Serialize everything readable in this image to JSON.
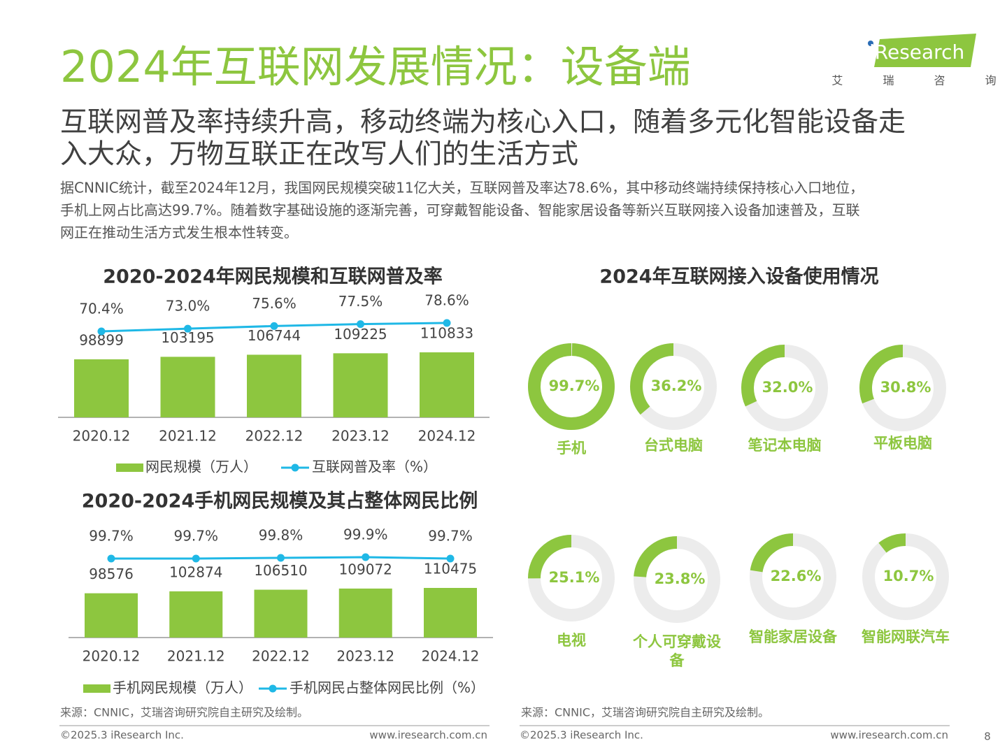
{
  "header": {
    "title": "2024年互联网发展情况：设备端",
    "subtitle_lines": [
      "互联网普及率持续升高，移动终端为核心入口，随着多元化智能设备走",
      "入大众，万物互联正在改写人们的生活方式"
    ],
    "paragraph_lines": [
      "据CNNIC统计，截至2024年12月，我国网民规模突破11亿大关，互联网普及率达78.6%，其中移动终端持续保持核心入口地位，",
      "手机上网占比高达99.7%。随着数字基础设施的逐渐完善，可穿戴智能设备、智能家居设备等新兴互联网接入设备加速普及，互联",
      "网正在推动生活方式发生根本性转变。"
    ],
    "logo": "iResearch",
    "logo_sub": "艾 瑞 咨 询"
  },
  "chart_data": [
    {
      "type": "bar_line",
      "title": "2020-2024年网民规模和互联网普及率",
      "categories": [
        "2020.12",
        "2021.12",
        "2022.12",
        "2023.12",
        "2024.12"
      ],
      "series": [
        {
          "name": "网民规模（万人）",
          "type": "bar",
          "color": "#8dc63f",
          "values": [
            98899,
            103195,
            106744,
            109225,
            110833
          ]
        },
        {
          "name": "互联网普及率（%）",
          "type": "line",
          "color": "#1fb8e6",
          "values": [
            70.4,
            73.0,
            75.6,
            77.5,
            78.6
          ],
          "value_labels": [
            "70.4%",
            "73.0%",
            "75.6%",
            "77.5%",
            "78.6%"
          ]
        }
      ]
    },
    {
      "type": "bar_line",
      "title": "2020-2024手机网民规模及其占整体网民比例",
      "categories": [
        "2020.12",
        "2021.12",
        "2022.12",
        "2023.12",
        "2024.12"
      ],
      "series": [
        {
          "name": "手机网民规模（万人）",
          "type": "bar",
          "color": "#8dc63f",
          "values": [
            98576,
            102874,
            106510,
            109072,
            110475
          ]
        },
        {
          "name": "手机网民占整体网民比例（%）",
          "type": "line",
          "color": "#1fb8e6",
          "values": [
            99.7,
            99.7,
            99.8,
            99.9,
            99.7
          ],
          "value_labels": [
            "99.7%",
            "99.7%",
            "99.8%",
            "99.9%",
            "99.7%"
          ]
        }
      ],
      "source": "来源：CNNIC，艾瑞咨询研究院自主研究及绘制。"
    },
    {
      "type": "donut",
      "title": "2024年互联网接入设备使用情况",
      "categories": [
        "手机",
        "台式电脑",
        "笔记本电脑",
        "平板电脑",
        "电视",
        "个人可穿戴设备",
        "智能家居设备",
        "智能网联汽车"
      ],
      "values": [
        99.7,
        36.2,
        32.0,
        30.8,
        25.1,
        23.8,
        22.6,
        10.7
      ],
      "value_labels": [
        "99.7%",
        "36.2%",
        "32.0%",
        "30.8%",
        "25.1%",
        "23.8%",
        "22.6%",
        "10.7%"
      ],
      "color": "#8dc63f",
      "track_color": "#ececec",
      "source": "来源：CNNIC，艾瑞咨询研究院自主研究及绘制。"
    }
  ],
  "footer": [
    {
      "copyright": "©2025.3 iResearch Inc.",
      "url": "www.iresearch.com.cn"
    },
    {
      "copyright": "©2025.3 iResearch Inc.",
      "url": "www.iresearch.com.cn"
    }
  ],
  "page_number": "8"
}
